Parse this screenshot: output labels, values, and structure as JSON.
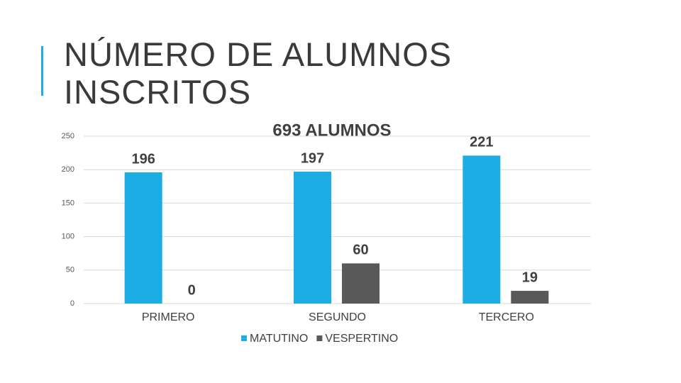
{
  "title": "NÚMERO DE ALUMNOS INSCRITOS",
  "chart_data": {
    "type": "bar",
    "title": "693 ALUMNOS",
    "categories": [
      "PRIMERO",
      "SEGUNDO",
      "TERCERO"
    ],
    "series": [
      {
        "name": "MATUTINO",
        "color": "#1cade4",
        "values": [
          196,
          197,
          221
        ]
      },
      {
        "name": "VESPERTINO",
        "color": "#595959",
        "values": [
          0,
          60,
          19
        ]
      }
    ],
    "ylim": [
      0,
      250
    ],
    "yticks": [
      0,
      50,
      100,
      150,
      200,
      250
    ],
    "grid": true,
    "legend": "bottom"
  }
}
